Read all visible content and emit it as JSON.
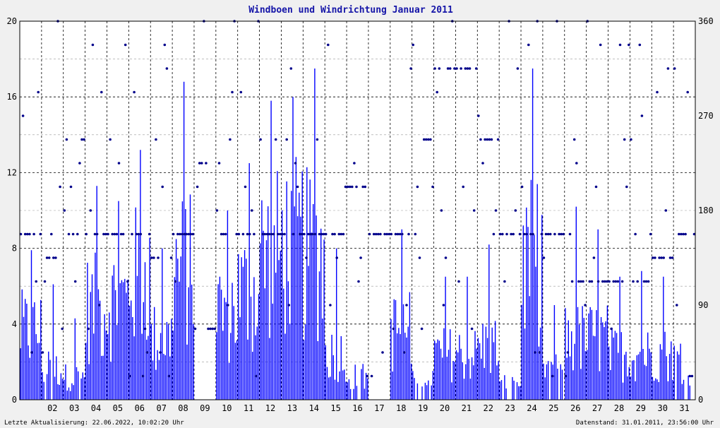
{
  "chart_data": {
    "type": "bar",
    "title": "Windboen und Windrichtung Januar 2011",
    "xlabel": "",
    "ylabel": "",
    "ylim": [
      0,
      20
    ],
    "y2lim": [
      0,
      360
    ],
    "grid": true,
    "left_ticks": [
      "0",
      "4",
      "8",
      "12",
      "16",
      "20"
    ],
    "right_ticks": [
      "0",
      "90",
      "180",
      "270",
      "360"
    ],
    "x_ticks": [
      "02",
      "03",
      "04",
      "05",
      "06",
      "07",
      "08",
      "09",
      "10",
      "11",
      "12",
      "13",
      "14",
      "15",
      "16",
      "17",
      "18",
      "19",
      "20",
      "21",
      "22",
      "23",
      "24",
      "25",
      "26",
      "27",
      "28",
      "29",
      "30",
      "31"
    ],
    "colors": {
      "gust": "#0000ff",
      "direction": "#00008b",
      "background": "#ffffff",
      "grid": "#000000"
    },
    "series": [
      {
        "name": "Windboen",
        "note_values_are_daily_max_estimates": false,
        "day_max": [
          7.9,
          6.1,
          4.3,
          11.3,
          10.5,
          13.2,
          8.0,
          16.8,
          0.0,
          10.0,
          12.5,
          15.8,
          16.0,
          17.5,
          8.0,
          4.0,
          0.0,
          9.0,
          3.5,
          6.5,
          6.5,
          8.2,
          2.0,
          17.5,
          5.0,
          10.2,
          9.0,
          6.5,
          6.8,
          6.5,
          5.0
        ],
        "day_typical": [
          4.5,
          2.0,
          1.5,
          6.0,
          6.5,
          8.0,
          4.0,
          8.5,
          0.0,
          6.0,
          7.0,
          9.5,
          10.0,
          9.5,
          3.0,
          1.5,
          0.0,
          4.5,
          1.5,
          3.0,
          3.0,
          3.5,
          1.0,
          9.0,
          2.0,
          4.0,
          4.0,
          3.0,
          3.0,
          3.0,
          2.5
        ]
      },
      {
        "name": "Windrichtung",
        "levels_deg": [
          22.5,
          45,
          67.5,
          90,
          112.5,
          135,
          157.5,
          180,
          202.5,
          225,
          247.5,
          270,
          292.5,
          315,
          337.5,
          360
        ],
        "day_main_deg": [
          157.5,
          135,
          157.5,
          157.5,
          157.5,
          157.5,
          135,
          157.5,
          67.5,
          157.5,
          157.5,
          157.5,
          157.5,
          157.5,
          157.5,
          202.5,
          157.5,
          157.5,
          247.5,
          315,
          315,
          247.5,
          157.5,
          157.5,
          157.5,
          112.5,
          112.5,
          112.5,
          112.5,
          135,
          157.5
        ]
      }
    ]
  },
  "footer": {
    "left": "Letzte Aktualisierung: 22.06.2022, 10:02:20 Uhr",
    "right": "Datenstand: 31.01.2011, 23:56:00 Uhr"
  }
}
